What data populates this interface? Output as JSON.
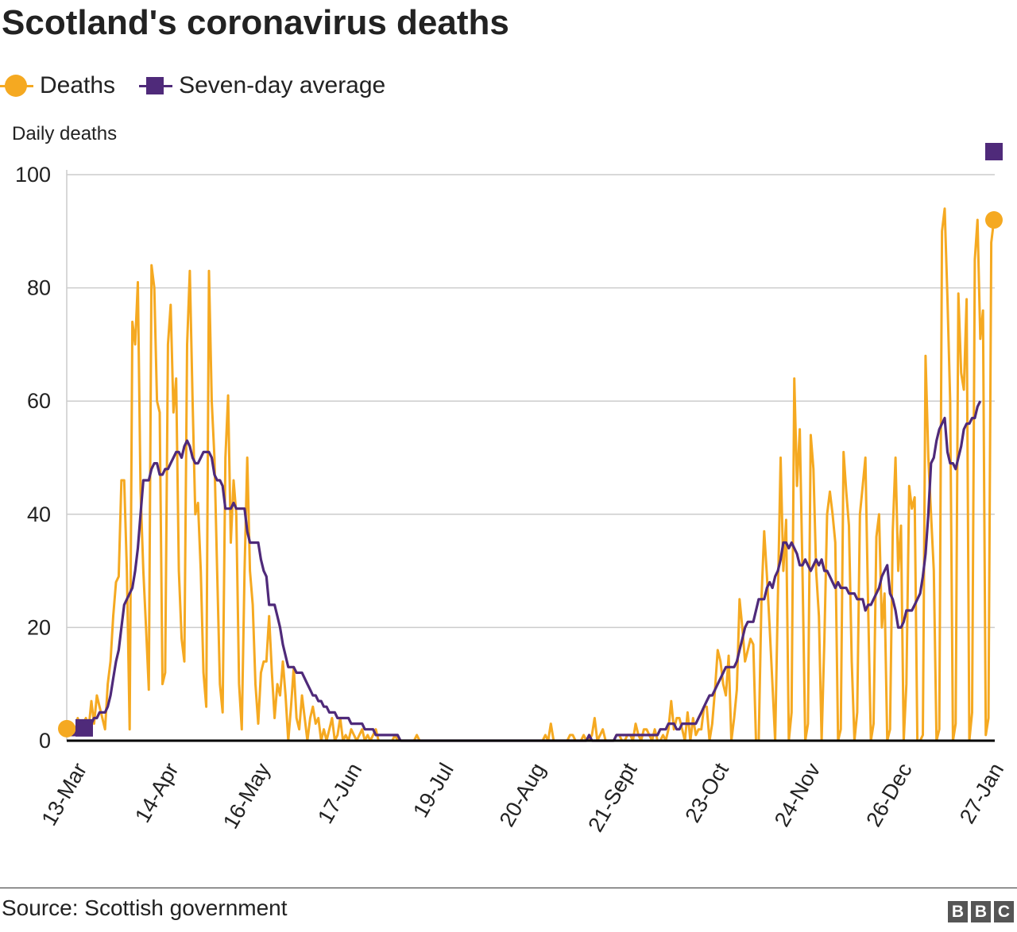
{
  "header": {
    "title": "Scotland's coronavirus deaths"
  },
  "legend": [
    {
      "label": "Deaths",
      "marker": "circle",
      "color": "#f5a921"
    },
    {
      "label": "Seven-day average",
      "marker": "square",
      "color": "#4f2a7a"
    }
  ],
  "footer": {
    "source": "Source: Scottish government",
    "logo_letters": [
      "B",
      "B",
      "C"
    ]
  },
  "chart_data": {
    "type": "line",
    "title": "Scotland's coronavirus deaths",
    "ylabel": "Daily deaths",
    "xlabel": "",
    "ylim": [
      0,
      100
    ],
    "yticks": [
      0,
      20,
      40,
      60,
      80,
      100
    ],
    "x_tick_labels": [
      "13-Mar",
      "14-Apr",
      "16-May",
      "17-Jun",
      "19-Jul",
      "20-Aug",
      "21-Sept",
      "23-Oct",
      "24-Nov",
      "26-Dec",
      "27-Jan"
    ],
    "x_start": "13-Mar",
    "x_end": "27-Jan",
    "grid": true,
    "legend_position": "top-left",
    "series": [
      {
        "name": "Deaths",
        "color": "#f5a921",
        "marker": "circle",
        "values": [
          1,
          2,
          3,
          1,
          4,
          2,
          3,
          4,
          2,
          7,
          3,
          8,
          6,
          4,
          2,
          10,
          14,
          22,
          28,
          29,
          46,
          46,
          30,
          2,
          74,
          70,
          81,
          44,
          30,
          20,
          9,
          84,
          80,
          60,
          58,
          10,
          12,
          70,
          77,
          58,
          64,
          30,
          18,
          14,
          70,
          83,
          60,
          40,
          42,
          30,
          12,
          6,
          83,
          60,
          50,
          30,
          10,
          5,
          50,
          61,
          35,
          46,
          40,
          10,
          2,
          30,
          50,
          30,
          24,
          10,
          3,
          12,
          14,
          14,
          22,
          12,
          4,
          10,
          8,
          14,
          8,
          0,
          6,
          13,
          4,
          2,
          8,
          4,
          0,
          4,
          6,
          3,
          4,
          0,
          2,
          0,
          2,
          4,
          0,
          1,
          4,
          0,
          1,
          0,
          2,
          1,
          0,
          1,
          2,
          0,
          1,
          0,
          1,
          2,
          0,
          0,
          0,
          0,
          0,
          0,
          1,
          0,
          0,
          0,
          0,
          0,
          0,
          0,
          1,
          0,
          0,
          0,
          0,
          0,
          0,
          0,
          0,
          0,
          0,
          0,
          0,
          0,
          0,
          0,
          0,
          0,
          0,
          0,
          0,
          0,
          0,
          0,
          0,
          0,
          0,
          0,
          0,
          0,
          0,
          0,
          0,
          0,
          0,
          0,
          0,
          0,
          0,
          0,
          0,
          0,
          0,
          0,
          0,
          0,
          0,
          1,
          0,
          3,
          0,
          0,
          0,
          0,
          0,
          0,
          1,
          1,
          0,
          0,
          0,
          1,
          0,
          0,
          1,
          4,
          0,
          1,
          2,
          0,
          0,
          0,
          0,
          1,
          1,
          0,
          0,
          1,
          1,
          0,
          3,
          1,
          0,
          2,
          2,
          1,
          0,
          2,
          0,
          0,
          1,
          0,
          2,
          7,
          2,
          4,
          4,
          2,
          0,
          5,
          0,
          4,
          1,
          2,
          2,
          6,
          6,
          0,
          3,
          9,
          16,
          14,
          10,
          8,
          15,
          0,
          4,
          9,
          25,
          20,
          14,
          16,
          18,
          17,
          0,
          0,
          25,
          37,
          29,
          20,
          10,
          0,
          25,
          50,
          30,
          39,
          0,
          5,
          64,
          45,
          55,
          30,
          0,
          3,
          54,
          48,
          30,
          22,
          0,
          18,
          40,
          44,
          40,
          35,
          0,
          2,
          51,
          44,
          38,
          14,
          0,
          5,
          40,
          45,
          50,
          24,
          0,
          3,
          36,
          40,
          20,
          26,
          0,
          2,
          37,
          50,
          30,
          38,
          0,
          10,
          45,
          41,
          43,
          0,
          0,
          1,
          68,
          50,
          40,
          30,
          0,
          2,
          90,
          94,
          78,
          60,
          0,
          3,
          79,
          65,
          62,
          78,
          0,
          5,
          85,
          92,
          71,
          76,
          1,
          4,
          88,
          92
        ]
      },
      {
        "name": "Seven-day average",
        "color": "#4f2a7a",
        "marker": "square",
        "values": [
          1,
          1,
          1,
          1,
          2,
          2,
          2,
          3,
          3,
          3,
          4,
          4,
          5,
          5,
          5,
          6,
          8,
          11,
          14,
          16,
          20,
          24,
          25,
          26,
          27,
          30,
          34,
          40,
          46,
          46,
          46,
          48,
          49,
          49,
          47,
          47,
          48,
          48,
          49,
          50,
          51,
          51,
          50,
          52,
          53,
          52,
          50,
          49,
          49,
          50,
          51,
          51,
          51,
          50,
          47,
          46,
          46,
          45,
          41,
          41,
          41,
          42,
          41,
          41,
          41,
          41,
          37,
          35,
          35,
          35,
          35,
          32,
          30,
          29,
          24,
          24,
          24,
          22,
          20,
          17,
          15,
          13,
          13,
          13,
          12,
          12,
          12,
          11,
          10,
          9,
          8,
          8,
          7,
          7,
          6,
          6,
          5,
          5,
          5,
          4,
          4,
          4,
          4,
          4,
          3,
          3,
          3,
          3,
          3,
          2,
          2,
          2,
          2,
          1,
          1,
          1,
          1,
          1,
          1,
          1,
          1,
          1,
          0,
          0,
          0,
          0,
          0,
          0,
          0,
          0,
          0,
          0,
          0,
          0,
          0,
          0,
          0,
          0,
          0,
          0,
          0,
          0,
          0,
          0,
          0,
          0,
          0,
          0,
          0,
          0,
          0,
          0,
          0,
          0,
          0,
          0,
          0,
          0,
          0,
          0,
          0,
          0,
          0,
          0,
          0,
          0,
          0,
          0,
          0,
          0,
          0,
          0,
          0,
          0,
          0,
          0,
          0,
          0,
          0,
          0,
          0,
          0,
          0,
          0,
          0,
          0,
          0,
          0,
          0,
          0,
          0,
          1,
          0,
          0,
          0,
          0,
          0,
          0,
          0,
          0,
          0,
          1,
          1,
          1,
          1,
          1,
          1,
          1,
          1,
          1,
          1,
          1,
          1,
          1,
          1,
          1,
          1,
          2,
          2,
          2,
          3,
          3,
          3,
          2,
          2,
          3,
          3,
          3,
          3,
          3,
          3,
          4,
          5,
          6,
          7,
          8,
          8,
          9,
          10,
          11,
          12,
          13,
          13,
          13,
          13,
          14,
          16,
          18,
          20,
          21,
          21,
          21,
          23,
          25,
          25,
          25,
          27,
          28,
          27,
          29,
          30,
          32,
          35,
          35,
          34,
          35,
          34,
          33,
          31,
          31,
          32,
          31,
          30,
          31,
          32,
          31,
          32,
          30,
          30,
          29,
          28,
          27,
          28,
          27,
          27,
          27,
          26,
          26,
          26,
          25,
          25,
          25,
          23,
          24,
          24,
          25,
          26,
          27,
          29,
          30,
          31,
          26,
          25,
          23,
          20,
          20,
          21,
          23,
          23,
          23,
          24,
          25,
          26,
          29,
          33,
          40,
          49,
          50,
          53,
          55,
          56,
          57,
          51,
          49,
          49,
          48,
          50,
          52,
          55,
          56,
          56,
          57,
          57,
          59,
          60
        ]
      }
    ]
  }
}
